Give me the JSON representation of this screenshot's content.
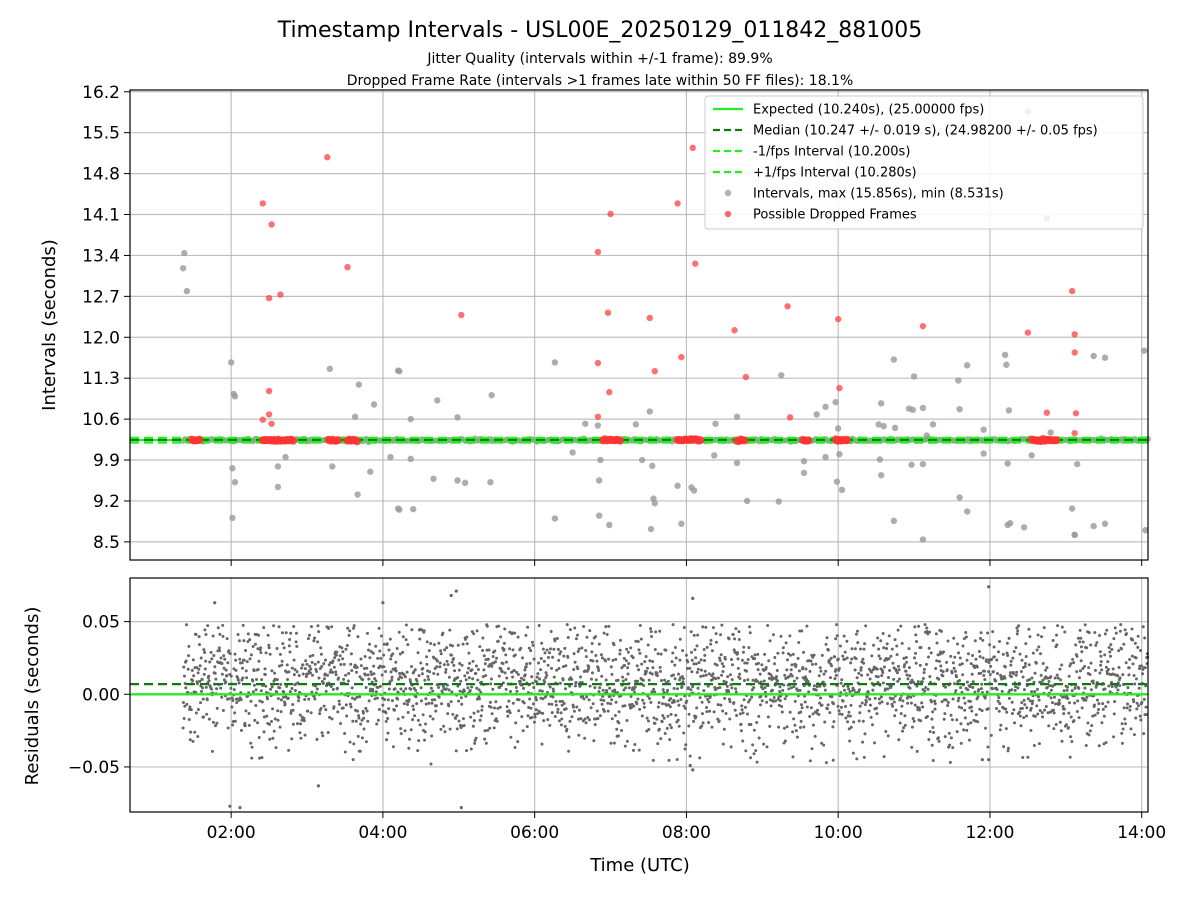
{
  "title": "Timestamp Intervals - USL00E_20250129_011842_881005",
  "subtitle_jitter": "Jitter Quality (intervals within +/-1 frame): 89.9%",
  "subtitle_dropped": "Dropped Frame Rate (intervals >1 frames late within 50 FF files): 18.1%",
  "colors": {
    "expected": "#22ee22",
    "median": "#117711",
    "bounds": "#22ee22",
    "intervals": "#999999",
    "dropped": "#ff3333",
    "residuals": "#666666"
  },
  "chart_data": [
    {
      "type": "scatter",
      "title": "Timestamp Intervals - USL00E_20250129_011842_881005",
      "xlabel": "",
      "ylabel": "Intervals (seconds)",
      "xlim_hours": [
        0.667,
        14.083
      ],
      "ylim": [
        8.19,
        16.23
      ],
      "yticks": [
        "8.5",
        "9.2",
        "9.9",
        "10.6",
        "11.3",
        "12.0",
        "12.7",
        "13.4",
        "14.1",
        "14.8",
        "15.5",
        "16.2"
      ],
      "grid": true,
      "legend_position": "top-right",
      "lines": [
        {
          "name": "Expected (10.240s), (25.00000 fps)",
          "y": 10.24,
          "style": "solid"
        },
        {
          "name": "Median (10.247 +/- 0.019 s), (24.98200 +/- 0.05 fps)",
          "y": 10.247,
          "style": "dashed"
        },
        {
          "name": "-1/fps Interval (10.200s)",
          "y": 10.2,
          "style": "dashed"
        },
        {
          "name": "+1/fps Interval (10.280s)",
          "y": 10.28,
          "style": "dashed"
        }
      ],
      "series": [
        {
          "name": "Intervals, max (15.856s), min (8.531s)",
          "x_start": "01:22",
          "x_end": "14:05",
          "baseline": 10.24,
          "outliers": [
            {
              "x": "01:23",
              "y": 13.44
            },
            {
              "x": "01:22",
              "y": 13.18
            },
            {
              "x": "01:25",
              "y": 12.79
            },
            {
              "x": "02:00",
              "y": 11.57
            },
            {
              "x": "02:02",
              "y": 11.03
            },
            {
              "x": "02:03",
              "y": 10.99
            },
            {
              "x": "02:01",
              "y": 9.76
            },
            {
              "x": "02:03",
              "y": 9.52
            },
            {
              "x": "02:01",
              "y": 8.91
            },
            {
              "x": "02:37",
              "y": 9.79
            },
            {
              "x": "02:37",
              "y": 9.44
            },
            {
              "x": "02:43",
              "y": 9.95
            },
            {
              "x": "03:18",
              "y": 11.46
            },
            {
              "x": "03:20",
              "y": 9.79
            },
            {
              "x": "03:41",
              "y": 11.19
            },
            {
              "x": "03:38",
              "y": 10.64
            },
            {
              "x": "03:40",
              "y": 9.31
            },
            {
              "x": "03:53",
              "y": 10.85
            },
            {
              "x": "03:50",
              "y": 9.7
            },
            {
              "x": "04:12",
              "y": 11.43
            },
            {
              "x": "04:13",
              "y": 11.42
            },
            {
              "x": "04:06",
              "y": 9.95
            },
            {
              "x": "04:12",
              "y": 9.07
            },
            {
              "x": "04:13",
              "y": 9.05
            },
            {
              "x": "04:22",
              "y": 10.6
            },
            {
              "x": "04:22",
              "y": 9.92
            },
            {
              "x": "04:24",
              "y": 9.06
            },
            {
              "x": "04:40",
              "y": 9.58
            },
            {
              "x": "04:43",
              "y": 10.92
            },
            {
              "x": "04:59",
              "y": 10.63
            },
            {
              "x": "04:59",
              "y": 9.55
            },
            {
              "x": "05:05",
              "y": 9.51
            },
            {
              "x": "05:25",
              "y": 9.52
            },
            {
              "x": "05:26",
              "y": 11.01
            },
            {
              "x": "06:16",
              "y": 11.57
            },
            {
              "x": "06:16",
              "y": 8.9
            },
            {
              "x": "06:30",
              "y": 10.03
            },
            {
              "x": "06:40",
              "y": 10.52
            },
            {
              "x": "06:50",
              "y": 10.49
            },
            {
              "x": "06:51",
              "y": 9.55
            },
            {
              "x": "06:52",
              "y": 9.9
            },
            {
              "x": "06:51",
              "y": 8.95
            },
            {
              "x": "06:59",
              "y": 8.79
            },
            {
              "x": "07:20",
              "y": 10.51
            },
            {
              "x": "07:25",
              "y": 9.9
            },
            {
              "x": "07:31",
              "y": 10.73
            },
            {
              "x": "07:33",
              "y": 9.8
            },
            {
              "x": "07:34",
              "y": 9.24
            },
            {
              "x": "07:32",
              "y": 8.72
            },
            {
              "x": "07:35",
              "y": 9.16
            },
            {
              "x": "07:53",
              "y": 9.46
            },
            {
              "x": "07:56",
              "y": 8.81
            },
            {
              "x": "08:04",
              "y": 9.43
            },
            {
              "x": "08:06",
              "y": 9.38
            },
            {
              "x": "08:23",
              "y": 10.52
            },
            {
              "x": "08:22",
              "y": 9.98
            },
            {
              "x": "08:40",
              "y": 10.64
            },
            {
              "x": "08:40",
              "y": 9.85
            },
            {
              "x": "08:48",
              "y": 9.2
            },
            {
              "x": "09:15",
              "y": 11.35
            },
            {
              "x": "09:13",
              "y": 9.19
            },
            {
              "x": "09:33",
              "y": 9.88
            },
            {
              "x": "09:33",
              "y": 9.68
            },
            {
              "x": "09:43",
              "y": 10.68
            },
            {
              "x": "09:50",
              "y": 10.81
            },
            {
              "x": "09:50",
              "y": 9.95
            },
            {
              "x": "09:58",
              "y": 10.89
            },
            {
              "x": "09:59",
              "y": 9.53
            },
            {
              "x": "10:00",
              "y": 10.44
            },
            {
              "x": "10:01",
              "y": 10.0
            },
            {
              "x": "10:03",
              "y": 9.39
            },
            {
              "x": "10:32",
              "y": 10.51
            },
            {
              "x": "10:33",
              "y": 9.91
            },
            {
              "x": "10:34",
              "y": 10.87
            },
            {
              "x": "10:34",
              "y": 9.64
            },
            {
              "x": "10:36",
              "y": 10.48
            },
            {
              "x": "10:44",
              "y": 11.62
            },
            {
              "x": "10:45",
              "y": 10.45
            },
            {
              "x": "10:44",
              "y": 8.86
            },
            {
              "x": "10:56",
              "y": 10.78
            },
            {
              "x": "10:59",
              "y": 10.76
            },
            {
              "x": "10:58",
              "y": 9.82
            },
            {
              "x": "11:00",
              "y": 11.33
            },
            {
              "x": "11:07",
              "y": 10.79
            },
            {
              "x": "11:07",
              "y": 8.54
            },
            {
              "x": "11:07",
              "y": 9.83
            },
            {
              "x": "11:10",
              "y": 10.32
            },
            {
              "x": "11:15",
              "y": 10.51
            },
            {
              "x": "11:35",
              "y": 11.26
            },
            {
              "x": "11:36",
              "y": 10.77
            },
            {
              "x": "11:36",
              "y": 9.26
            },
            {
              "x": "11:42",
              "y": 11.52
            },
            {
              "x": "11:42",
              "y": 9.02
            },
            {
              "x": "11:55",
              "y": 10.42
            },
            {
              "x": "11:55",
              "y": 10.01
            },
            {
              "x": "12:12",
              "y": 11.7
            },
            {
              "x": "12:13",
              "y": 11.53
            },
            {
              "x": "12:15",
              "y": 10.75
            },
            {
              "x": "12:14",
              "y": 9.84
            },
            {
              "x": "12:14",
              "y": 8.79
            },
            {
              "x": "12:16",
              "y": 8.82
            },
            {
              "x": "12:27",
              "y": 8.75
            },
            {
              "x": "12:33",
              "y": 9.98
            },
            {
              "x": "12:48",
              "y": 10.37
            },
            {
              "x": "13:05",
              "y": 9.07
            },
            {
              "x": "13:07",
              "y": 8.62
            },
            {
              "x": "13:07",
              "y": 8.62
            },
            {
              "x": "13:09",
              "y": 9.83
            },
            {
              "x": "13:22",
              "y": 11.68
            },
            {
              "x": "13:31",
              "y": 11.65
            },
            {
              "x": "13:22",
              "y": 8.77
            },
            {
              "x": "13:31",
              "y": 8.81
            },
            {
              "x": "14:02",
              "y": 11.77
            },
            {
              "x": "14:03",
              "y": 8.7
            }
          ]
        },
        {
          "name": "Possible Dropped Frames",
          "clusters": [
            {
              "start": "01:29",
              "end": "01:35",
              "y": 10.24
            },
            {
              "start": "02:25",
              "end": "02:50",
              "y": 10.24
            },
            {
              "start": "03:17",
              "end": "03:25",
              "y": 10.24
            },
            {
              "start": "03:32",
              "end": "03:40",
              "y": 10.24
            },
            {
              "start": "06:54",
              "end": "07:08",
              "y": 10.24
            },
            {
              "start": "07:53",
              "end": "08:12",
              "y": 10.24
            },
            {
              "start": "08:40",
              "end": "08:47",
              "y": 10.24
            },
            {
              "start": "09:32",
              "end": "09:38",
              "y": 10.24
            },
            {
              "start": "09:58",
              "end": "10:08",
              "y": 10.24
            },
            {
              "start": "12:33",
              "end": "12:54",
              "y": 10.24
            }
          ],
          "points": [
            {
              "x": "02:25",
              "y": 14.29
            },
            {
              "x": "02:32",
              "y": 13.93
            },
            {
              "x": "02:30",
              "y": 12.67
            },
            {
              "x": "02:39",
              "y": 12.73
            },
            {
              "x": "02:30",
              "y": 11.08
            },
            {
              "x": "02:25",
              "y": 10.59
            },
            {
              "x": "02:30",
              "y": 10.68
            },
            {
              "x": "02:32",
              "y": 10.52
            },
            {
              "x": "03:16",
              "y": 15.08
            },
            {
              "x": "03:32",
              "y": 13.2
            },
            {
              "x": "05:02",
              "y": 12.38
            },
            {
              "x": "06:50",
              "y": 13.46
            },
            {
              "x": "06:50",
              "y": 11.56
            },
            {
              "x": "06:50",
              "y": 10.64
            },
            {
              "x": "06:58",
              "y": 12.42
            },
            {
              "x": "06:59",
              "y": 11.06
            },
            {
              "x": "07:00",
              "y": 14.11
            },
            {
              "x": "07:31",
              "y": 12.33
            },
            {
              "x": "07:35",
              "y": 11.42
            },
            {
              "x": "07:53",
              "y": 14.29
            },
            {
              "x": "07:56",
              "y": 11.66
            },
            {
              "x": "08:05",
              "y": 15.24
            },
            {
              "x": "08:07",
              "y": 13.26
            },
            {
              "x": "08:38",
              "y": 12.12
            },
            {
              "x": "08:47",
              "y": 11.32
            },
            {
              "x": "09:20",
              "y": 12.53
            },
            {
              "x": "09:22",
              "y": 10.63
            },
            {
              "x": "10:00",
              "y": 12.31
            },
            {
              "x": "10:01",
              "y": 11.13
            },
            {
              "x": "11:07",
              "y": 12.19
            },
            {
              "x": "12:30",
              "y": 15.86
            },
            {
              "x": "12:30",
              "y": 12.08
            },
            {
              "x": "12:45",
              "y": 14.03
            },
            {
              "x": "12:45",
              "y": 10.71
            },
            {
              "x": "13:05",
              "y": 12.79
            },
            {
              "x": "13:07",
              "y": 12.05
            },
            {
              "x": "13:07",
              "y": 11.74
            },
            {
              "x": "13:08",
              "y": 10.7
            },
            {
              "x": "13:07",
              "y": 10.36
            }
          ]
        }
      ]
    },
    {
      "type": "scatter",
      "title": "",
      "xlabel": "Time (UTC)",
      "ylabel": "Residuals (seconds)",
      "xlim_hours": [
        0.667,
        14.083
      ],
      "ylim": [
        -0.081,
        0.08
      ],
      "yticks": [
        "−0.05",
        "0.00",
        "0.05"
      ],
      "xticks": [
        "02:00",
        "04:00",
        "06:00",
        "08:00",
        "10:00",
        "12:00",
        "14:00"
      ],
      "grid": true,
      "lines": [
        {
          "name": "Expected",
          "y": 0.0,
          "style": "solid"
        },
        {
          "name": "Median",
          "y": 0.007,
          "style": "dashed"
        }
      ],
      "series": [
        {
          "name": "Residuals",
          "x_start": "01:22",
          "x_end": "14:05",
          "band": [
            -0.048,
            0.048
          ],
          "extremes": [
            {
              "x": "01:59",
              "y": -0.077
            },
            {
              "x": "02:07",
              "y": -0.078
            },
            {
              "x": "03:09",
              "y": -0.063
            },
            {
              "x": "05:02",
              "y": -0.078
            },
            {
              "x": "08:03",
              "y": -0.049
            },
            {
              "x": "08:05",
              "y": -0.052
            },
            {
              "x": "01:47",
              "y": 0.063
            },
            {
              "x": "04:00",
              "y": 0.063
            },
            {
              "x": "04:54",
              "y": 0.068
            },
            {
              "x": "04:58",
              "y": 0.071
            },
            {
              "x": "08:05",
              "y": 0.066
            },
            {
              "x": "11:59",
              "y": 0.074
            },
            {
              "x": "11:54",
              "y": -0.045
            },
            {
              "x": "11:59",
              "y": -0.045
            }
          ]
        }
      ]
    }
  ]
}
